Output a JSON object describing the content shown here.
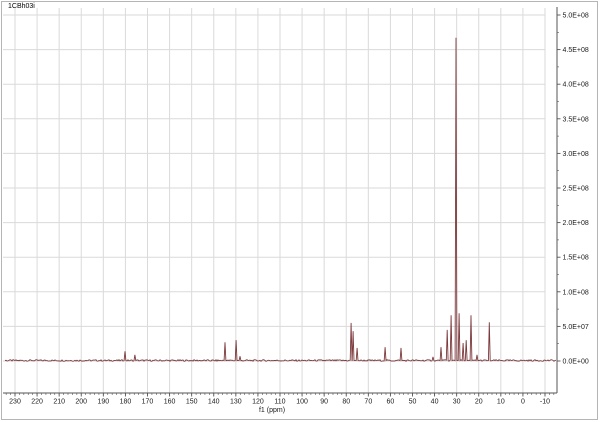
{
  "window": {
    "background": "#ffffff",
    "border_color": "#b5b5b5"
  },
  "chart_data": {
    "type": "line",
    "title": "1CBh03i",
    "xlabel": "f1 (ppm)",
    "x_ticks": [
      230,
      220,
      210,
      200,
      190,
      180,
      170,
      160,
      150,
      140,
      130,
      120,
      110,
      100,
      90,
      80,
      70,
      60,
      50,
      40,
      30,
      20,
      10,
      0,
      -10
    ],
    "x_minor_step_ppm": 2,
    "x_range_ppm": [
      234.5,
      -15.0
    ],
    "y_tick_labels": [
      "5.0E+08",
      "4.5E+08",
      "4.0E+08",
      "3.5E+08",
      "3.0E+08",
      "2.5E+08",
      "2.0E+08",
      "1.5E+08",
      "1.0E+08",
      "5.0E+07",
      "0.0E+00"
    ],
    "y_tick_values": [
      500000000.0,
      450000000.0,
      400000000.0,
      350000000.0,
      300000000.0,
      250000000.0,
      200000000.0,
      150000000.0,
      100000000.0,
      50000000.0,
      0.0
    ],
    "y_range": [
      0,
      510000000.0
    ],
    "grid": true,
    "legend": "none",
    "line_color": "#7c3a3d",
    "grid_color": "#dadada",
    "axis_color": "#555555",
    "tick_label_color": "#1a1a1a",
    "noise_amplitude": 2000000.0,
    "peaks": [
      {
        "ppm": 180.2,
        "intensity": 14000000.0
      },
      {
        "ppm": 175.7,
        "intensity": 9000000.0
      },
      {
        "ppm": 134.9,
        "intensity": 27000000.0
      },
      {
        "ppm": 129.9,
        "intensity": 30000000.0
      },
      {
        "ppm": 128.1,
        "intensity": 7000000.0
      },
      {
        "ppm": 77.8,
        "intensity": 55000000.0
      },
      {
        "ppm": 76.9,
        "intensity": 43000000.0
      },
      {
        "ppm": 75.1,
        "intensity": 19000000.0
      },
      {
        "ppm": 62.4,
        "intensity": 20000000.0
      },
      {
        "ppm": 55.2,
        "intensity": 19000000.0
      },
      {
        "ppm": 40.7,
        "intensity": 6000000.0
      },
      {
        "ppm": 37.1,
        "intensity": 20000000.0
      },
      {
        "ppm": 34.3,
        "intensity": 45000000.0
      },
      {
        "ppm": 32.5,
        "intensity": 66000000.0
      },
      {
        "ppm": 30.3,
        "intensity": 467000000.0
      },
      {
        "ppm": 28.9,
        "intensity": 69000000.0
      },
      {
        "ppm": 27.1,
        "intensity": 26000000.0
      },
      {
        "ppm": 25.7,
        "intensity": 30000000.0
      },
      {
        "ppm": 23.5,
        "intensity": 66000000.0
      },
      {
        "ppm": 20.8,
        "intensity": 9000000.0
      },
      {
        "ppm": 15.2,
        "intensity": 56000000.0
      }
    ]
  }
}
